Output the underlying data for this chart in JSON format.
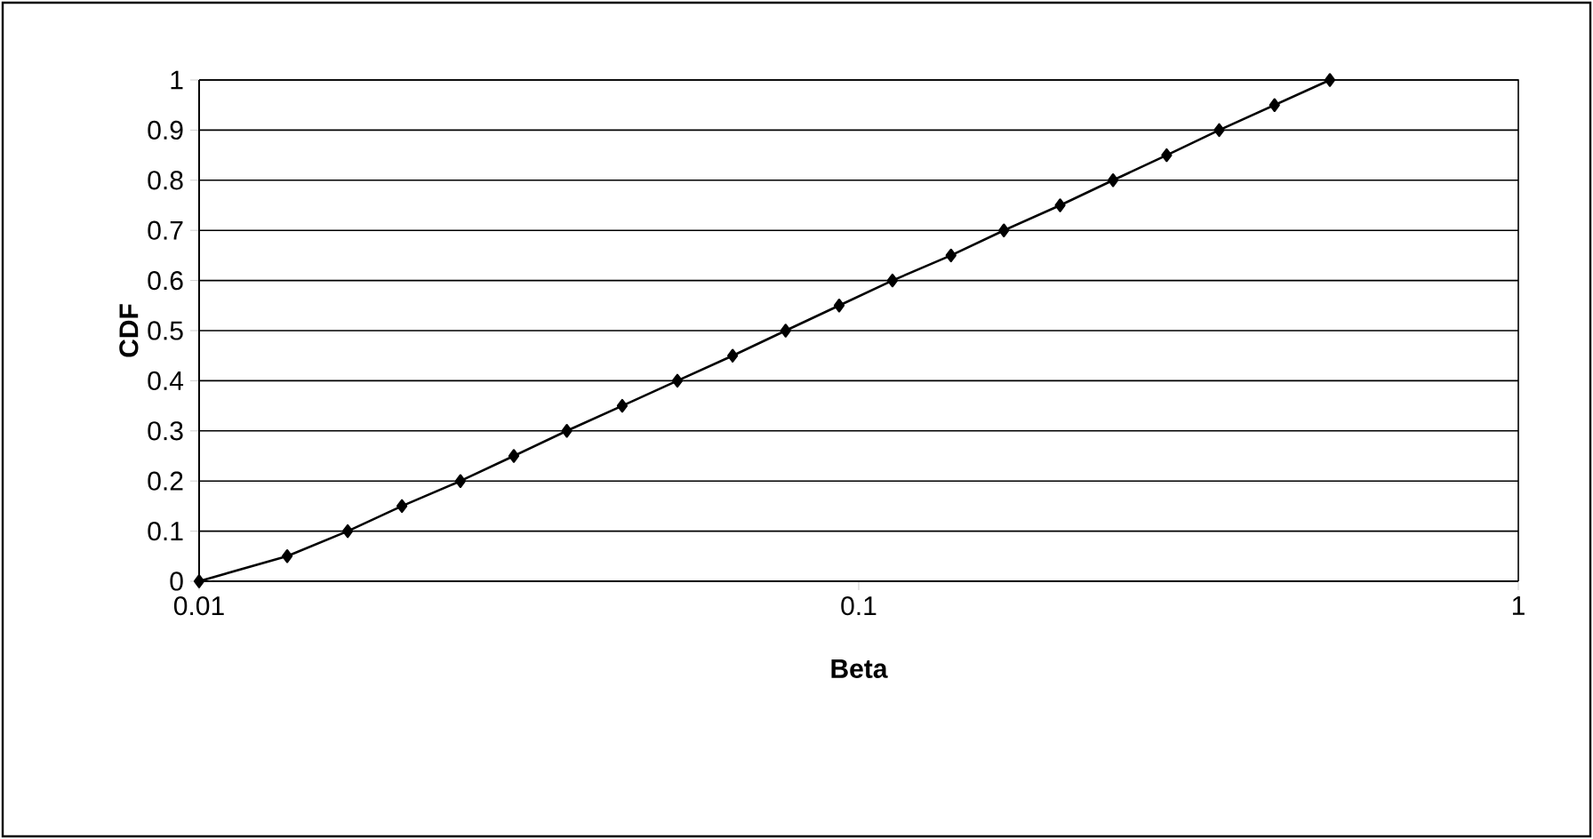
{
  "chart_data": {
    "type": "line",
    "xlabel": "Beta",
    "ylabel": "CDF",
    "x": [
      0.01,
      0.0136,
      0.0168,
      0.0203,
      0.0249,
      0.03,
      0.0361,
      0.0438,
      0.0531,
      0.0644,
      0.0775,
      0.0934,
      0.1125,
      0.138,
      0.166,
      0.202,
      0.243,
      0.293,
      0.352,
      0.427,
      0.518
    ],
    "series": [
      {
        "color": "#000000",
        "values": [
          0,
          0.05,
          0.1,
          0.15,
          0.2,
          0.25,
          0.3,
          0.35,
          0.4,
          0.45,
          0.5,
          0.55,
          0.6,
          0.65,
          0.7,
          0.75,
          0.8,
          0.85,
          0.9,
          0.95,
          1
        ]
      }
    ],
    "xlim": [
      0.01,
      1
    ],
    "ylim": [
      0,
      1
    ],
    "xticks": [
      0.01,
      0.1,
      1
    ],
    "yticks": [
      0,
      0.1,
      0.2,
      0.3,
      0.4,
      0.5,
      0.6,
      0.7,
      0.8,
      0.9,
      1
    ],
    "log": "x",
    "grid": "y",
    "marker": "diamond",
    "line_style": "solid"
  }
}
